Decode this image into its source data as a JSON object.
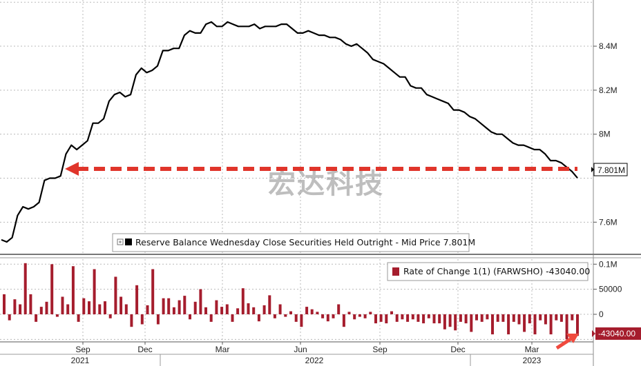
{
  "chart_data": [
    {
      "type": "line",
      "legend_label": "Reserve Balance Wednesday Close Securities Held Outright - Mid Price 7.801M",
      "last_value_label": "7.801M",
      "y_ticks": [
        "8.4M",
        "8.2M",
        "8M",
        "7.6M"
      ],
      "y_tick_values": [
        8.4,
        8.2,
        8.0,
        7.6
      ],
      "ylim": [
        7.46,
        8.61
      ],
      "reference_level": 7.801,
      "series": [
        {
          "values": [
            7.52,
            7.51,
            7.53,
            7.63,
            7.67,
            7.66,
            7.67,
            7.69,
            7.79,
            7.8,
            7.8,
            7.81,
            7.91,
            7.95,
            7.93,
            7.95,
            7.97,
            8.05,
            8.05,
            8.07,
            8.15,
            8.18,
            8.19,
            8.17,
            8.18,
            8.27,
            8.3,
            8.28,
            8.29,
            8.31,
            8.38,
            8.38,
            8.39,
            8.39,
            8.45,
            8.47,
            8.46,
            8.46,
            8.5,
            8.51,
            8.49,
            8.49,
            8.51,
            8.5,
            8.49,
            8.49,
            8.49,
            8.5,
            8.48,
            8.49,
            8.49,
            8.49,
            8.5,
            8.5,
            8.48,
            8.46,
            8.46,
            8.47,
            8.46,
            8.45,
            8.45,
            8.44,
            8.44,
            8.43,
            8.41,
            8.4,
            8.41,
            8.39,
            8.37,
            8.34,
            8.33,
            8.32,
            8.3,
            8.28,
            8.26,
            8.26,
            8.22,
            8.21,
            8.21,
            8.18,
            8.17,
            8.16,
            8.15,
            8.14,
            8.11,
            8.11,
            8.1,
            8.08,
            8.07,
            8.05,
            8.03,
            8.01,
            8.0,
            8.0,
            7.98,
            7.96,
            7.95,
            7.95,
            7.94,
            7.93,
            7.93,
            7.91,
            7.88,
            7.88,
            7.87,
            7.85,
            7.83,
            7.801
          ]
        }
      ]
    },
    {
      "type": "bar",
      "legend_label": "Rate of Change 1(1) (FARWSHO) -43040.00",
      "last_value_label": "-43040.00",
      "y_ticks": [
        "0.1M",
        "50000",
        "0"
      ],
      "y_tick_values": [
        100000,
        50000,
        0
      ],
      "ylim": [
        -55000,
        110000
      ],
      "series": [
        {
          "color": "#a51d2d",
          "values": [
            40000,
            -12000,
            30000,
            20000,
            102000,
            40000,
            -15000,
            15000,
            25000,
            100000,
            -5000,
            35000,
            20000,
            96000,
            -15000,
            32000,
            26000,
            90000,
            20000,
            26000,
            -8000,
            75000,
            35000,
            20000,
            -25000,
            58000,
            -20000,
            18000,
            90000,
            -20000,
            32000,
            32000,
            14000,
            28000,
            37000,
            -10000,
            25000,
            50000,
            14000,
            -15000,
            28000,
            15000,
            20000,
            -15000,
            12000,
            52000,
            22000,
            14000,
            -14000,
            18000,
            38000,
            -8000,
            20000,
            -5000,
            6000,
            -15000,
            -25000,
            15000,
            10000,
            5000,
            -8000,
            -14000,
            -8000,
            20000,
            -25000,
            5000,
            -10000,
            -5000,
            -8000,
            5000,
            -18000,
            -15000,
            -18000,
            6000,
            -15000,
            -10000,
            -15000,
            -10000,
            -15000,
            -18000,
            -8000,
            -18000,
            -18000,
            -30000,
            -25000,
            -32000,
            -15000,
            -18000,
            -35000,
            -12000,
            -15000,
            -10000,
            -40000,
            -15000,
            -15000,
            -40000,
            -15000,
            -20000,
            -35000,
            -18000,
            -40000,
            -12000,
            -20000,
            -40000,
            -12000,
            -15000,
            -50000,
            -12000,
            -43040
          ]
        }
      ]
    }
  ],
  "x_axis": {
    "months": [
      "Sep",
      "Dec",
      "Mar",
      "Jun",
      "Sep",
      "Dec",
      "Mar"
    ],
    "years": [
      "2021",
      "2022",
      "2023"
    ]
  },
  "watermark": "宏达科技",
  "colors": {
    "line": "#000000",
    "bar": "#a51d2d",
    "arrow": "#e0352b",
    "grid": "#b8b8b8"
  }
}
